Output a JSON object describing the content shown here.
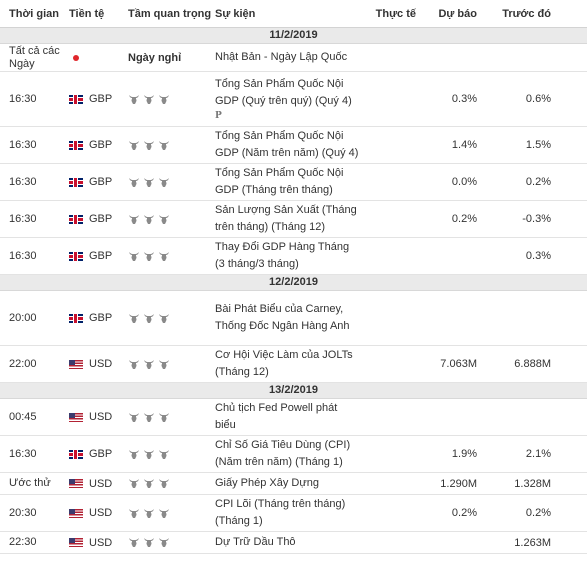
{
  "columns": {
    "time": "Thời gian",
    "currency": "Tiền tệ",
    "importance": "Tầm quan trọng",
    "event": "Sự kiện",
    "actual": "Thực tế",
    "forecast": "Dự báo",
    "previous": "Trước đó"
  },
  "groups": [
    {
      "date": "11/2/2019",
      "rows": [
        {
          "time": "Tất cả các Ngày",
          "currency": "",
          "flag": "jp",
          "importance": "Ngày nghỉ",
          "event": "Nhật Bản - Ngày Lập Quốc",
          "actual": "",
          "forecast": "",
          "previous": "",
          "h": 28
        },
        {
          "time": "16:30",
          "currency": "GBP",
          "flag": "gb",
          "importance": "",
          "event": "Tổng Sản Phẩm Quốc Nội GDP (Quý trên quý) (Quý 4)",
          "marker": "P",
          "actual": "",
          "forecast": "0.3%",
          "previous": "0.6%",
          "h": 55
        },
        {
          "time": "16:30",
          "currency": "GBP",
          "flag": "gb",
          "importance": "",
          "event": "Tổng Sản Phẩm Quốc Nội GDP (Năm trên năm) (Quý 4)",
          "actual": "",
          "forecast": "1.4%",
          "previous": "1.5%",
          "h": 37
        },
        {
          "time": "16:30",
          "currency": "GBP",
          "flag": "gb",
          "importance": "",
          "event": "Tổng Sản Phẩm Quốc Nội GDP (Tháng trên tháng)",
          "actual": "",
          "forecast": "0.0%",
          "previous": "0.2%",
          "h": 37
        },
        {
          "time": "16:30",
          "currency": "GBP",
          "flag": "gb",
          "importance": "",
          "event": "Sản Lượng Sản Xuất (Tháng trên tháng) (Tháng 12)",
          "actual": "",
          "forecast": "0.2%",
          "previous": "-0.3%",
          "h": 37
        },
        {
          "time": "16:30",
          "currency": "GBP",
          "flag": "gb",
          "importance": "",
          "event": "Thay Đổi GDP Hàng Tháng (3 tháng/3 tháng)",
          "actual": "",
          "forecast": "",
          "previous": "0.3%",
          "h": 37
        }
      ]
    },
    {
      "date": "12/2/2019",
      "rows": [
        {
          "time": "20:00",
          "currency": "GBP",
          "flag": "gb",
          "importance": "",
          "event": "Bài Phát Biểu của Carney, Thống Đốc Ngân Hàng Anh",
          "actual": "",
          "forecast": "",
          "previous": "",
          "h": 55
        },
        {
          "time": "22:00",
          "currency": "USD",
          "flag": "us",
          "importance": "",
          "event": "Cơ Hội Việc Làm của JOLTs (Tháng 12)",
          "actual": "",
          "forecast": "7.063M",
          "previous": "6.888M",
          "h": 37
        }
      ]
    },
    {
      "date": "13/2/2019",
      "rows": [
        {
          "time": "00:45",
          "currency": "USD",
          "flag": "us",
          "importance": "",
          "event": "Chủ tịch Fed Powell phát biểu",
          "actual": "",
          "forecast": "",
          "previous": "",
          "h": 37
        },
        {
          "time": "16:30",
          "currency": "GBP",
          "flag": "gb",
          "importance": "",
          "event": "Chỉ Số Giá Tiêu Dùng (CPI) (Năm trên năm) (Tháng 1)",
          "actual": "",
          "forecast": "1.9%",
          "previous": "2.1%",
          "h": 37
        },
        {
          "time": "Ước thử",
          "currency": "USD",
          "flag": "us",
          "importance": "",
          "event": "Giấy Phép Xây Dựng",
          "actual": "",
          "forecast": "1.290M",
          "previous": "1.328M",
          "h": 22
        },
        {
          "time": "20:30",
          "currency": "USD",
          "flag": "us",
          "importance": "",
          "event": "CPI Lõi (Tháng trên tháng) (Tháng 1)",
          "actual": "",
          "forecast": "0.2%",
          "previous": "0.2%",
          "h": 37
        },
        {
          "time": "22:30",
          "currency": "USD",
          "flag": "us",
          "importance": "",
          "event": "Dự Trữ Dầu Thô",
          "actual": "",
          "forecast": "",
          "previous": "1.263M",
          "h": 22
        }
      ]
    }
  ]
}
